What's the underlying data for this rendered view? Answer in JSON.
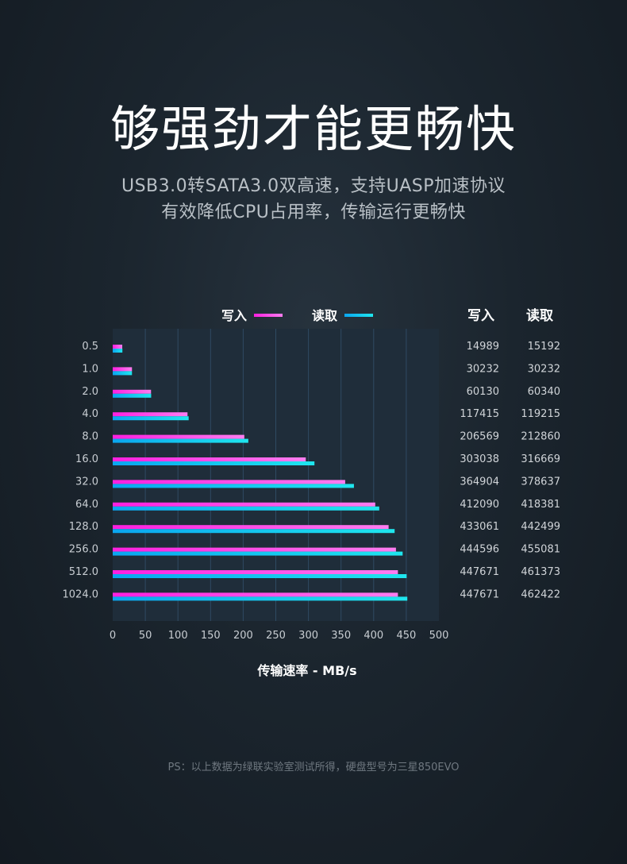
{
  "header": {
    "title": "够强劲才能更畅快",
    "subtitle_line1": "USB3.0转SATA3.0双高速，支持UASP加速协议",
    "subtitle_line2": "有效降低CPU占用率，传输运行更畅快"
  },
  "footnote": "PS：以上数据为绿联实验室测试所得，硬盘型号为三星850EVO",
  "chart_data": {
    "type": "bar",
    "orientation": "horizontal",
    "categories": [
      "0.5",
      "1.0",
      "2.0",
      "4.0",
      "8.0",
      "16.0",
      "32.0",
      "64.0",
      "128.0",
      "256.0",
      "512.0",
      "1024.0"
    ],
    "series": [
      {
        "name": "写入",
        "color": "#ff2fd6",
        "values": [
          14989,
          30232,
          60130,
          117415,
          206569,
          303038,
          364904,
          412090,
          433061,
          444596,
          447671,
          447671
        ]
      },
      {
        "name": "读取",
        "color": "#14c8f0",
        "values": [
          15192,
          30232,
          60340,
          119215,
          212860,
          316669,
          378637,
          418381,
          442499,
          455081,
          461373,
          462422
        ]
      }
    ],
    "xlabel": "传输速率 - MB/s",
    "xlim": [
      0,
      500
    ],
    "xticks": [
      "0",
      "50",
      "100",
      "150",
      "200",
      "250",
      "300",
      "350",
      "400",
      "450",
      "500"
    ],
    "value_divisor": 1024,
    "legend_position": "top-center",
    "table_headers": [
      "写入",
      "读取"
    ],
    "grid": true
  }
}
